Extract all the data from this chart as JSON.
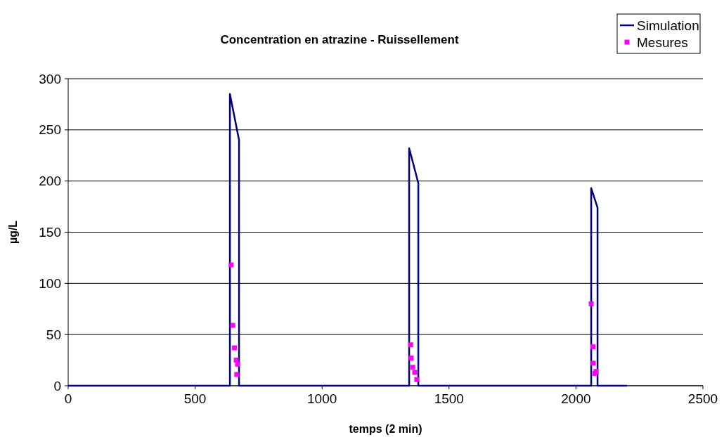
{
  "chart_data": {
    "type": "line",
    "title": "Concentration en atrazine - Ruissellement",
    "xlabel": "temps (2 min)",
    "ylabel": "µg/L",
    "xlim": [
      0,
      2500
    ],
    "xticks": [
      0,
      500,
      1000,
      1500,
      2000,
      2500
    ],
    "ylim": [
      0,
      300
    ],
    "yticks": [
      0,
      50,
      100,
      150,
      200,
      250,
      300
    ],
    "grid": "y",
    "legend": "top right",
    "series": [
      {
        "name": "Simulation",
        "color": "#000080",
        "marker": "none",
        "x": [
          0,
          637,
          637,
          673,
          673,
          1343,
          1343,
          1379,
          1379,
          2060,
          2060,
          2085,
          2085,
          2201
        ],
        "values": [
          0,
          0,
          285,
          240,
          0,
          0,
          232,
          198,
          0,
          0,
          193,
          174,
          0,
          0
        ]
      },
      {
        "name": "Mesures",
        "type": "scatter",
        "color": "#ff00ff",
        "marker": "square",
        "x": [
          642,
          648,
          655,
          662,
          667,
          664,
          1349,
          1351,
          1357,
          1365,
          1373,
          2060,
          2067,
          2068,
          2079,
          2075
        ],
        "values": [
          118,
          59,
          37,
          25,
          21,
          11,
          40,
          27,
          18,
          13,
          6,
          80,
          38,
          22,
          14,
          12
        ]
      }
    ]
  }
}
